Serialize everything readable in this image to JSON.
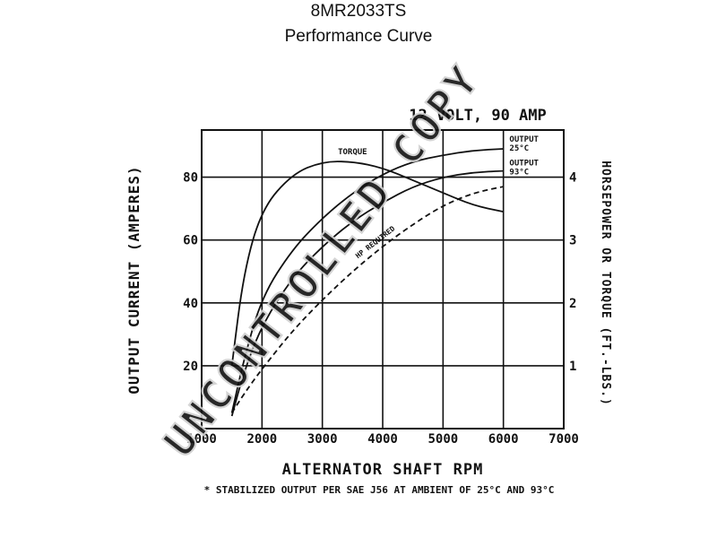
{
  "header": {
    "model": "8MR2033TS",
    "subtitle": "Performance Curve"
  },
  "watermark": "UNCONTROLLED COPY",
  "colors": {
    "ink": "#111111",
    "watermark": "#d0d0d0",
    "background": "#ffffff"
  },
  "chart_data": {
    "type": "line",
    "title": "12 VOLT, 90 AMP",
    "xlabel": "ALTERNATOR SHAFT RPM",
    "ylabel": "OUTPUT CURRENT (AMPERES)",
    "y2label": "HORSEPOWER OR TORQUE (FT.-LBS.)",
    "footnote": "* STABILIZED OUTPUT PER SAE J56 AT AMBIENT OF 25°C AND 93°C",
    "xlim": [
      1000,
      7000
    ],
    "ylim": [
      0,
      95
    ],
    "y2lim": [
      0,
      4.75
    ],
    "x_ticks": [
      1000,
      2000,
      3000,
      4000,
      5000,
      6000,
      7000
    ],
    "y_ticks": [
      20,
      40,
      60,
      80
    ],
    "y2_ticks": [
      1,
      2,
      3,
      4
    ],
    "grid": true,
    "series": [
      {
        "name": "OUTPUT 25°C",
        "axis": "left",
        "dash": "none",
        "x": [
          1500,
          1700,
          2000,
          2500,
          3000,
          3500,
          4000,
          4500,
          5000,
          5500,
          6000
        ],
        "y": [
          5,
          22,
          42,
          57,
          67,
          75,
          81,
          85,
          87,
          88.5,
          89
        ]
      },
      {
        "name": "OUTPUT 93°C",
        "axis": "left",
        "dash": "none",
        "x": [
          1500,
          1700,
          2000,
          2500,
          3000,
          3500,
          4000,
          4500,
          5000,
          5500,
          6000
        ],
        "y": [
          4,
          18,
          33,
          48,
          58,
          66,
          72,
          77,
          80,
          81.5,
          82
        ]
      },
      {
        "name": "TORQUE",
        "axis": "right",
        "dash": "none",
        "x": [
          1500,
          1700,
          2000,
          2500,
          3000,
          3500,
          4000,
          4500,
          5000,
          5500,
          6000
        ],
        "y": [
          1.0,
          2.5,
          3.5,
          4.05,
          4.25,
          4.25,
          4.15,
          3.95,
          3.75,
          3.55,
          3.45
        ]
      },
      {
        "name": "HP REQUIRED",
        "axis": "right",
        "dash": "6,4",
        "x": [
          1500,
          1700,
          2000,
          2500,
          3000,
          3500,
          4000,
          4500,
          5000,
          5500,
          6000
        ],
        "y": [
          0.25,
          0.55,
          0.95,
          1.55,
          2.05,
          2.5,
          2.9,
          3.25,
          3.55,
          3.75,
          3.85
        ]
      }
    ],
    "annotations": [
      {
        "text": "TORQUE",
        "series": "TORQUE"
      },
      {
        "text": "OUTPUT",
        "text2": "25°C",
        "series": "OUTPUT 25°C"
      },
      {
        "text": "OUTPUT",
        "text2": "93°C",
        "series": "OUTPUT 93°C"
      },
      {
        "text": "HP REQUIRED",
        "series": "HP REQUIRED"
      }
    ]
  }
}
